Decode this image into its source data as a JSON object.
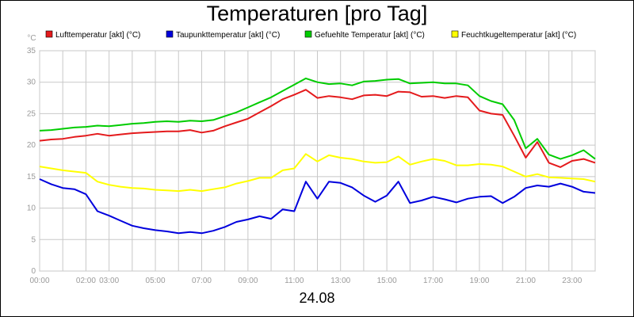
{
  "chart_data": {
    "type": "line",
    "title": "Temperaturen [pro Tag]",
    "xlabel": "24.08",
    "ylabel": "°C",
    "ylim": [
      0,
      35
    ],
    "xlim": [
      0,
      24
    ],
    "yticks": [
      "0",
      "5",
      "10",
      "15",
      "20",
      "25",
      "30",
      "35"
    ],
    "xticks": [
      {
        "h": 0,
        "label": "00:00"
      },
      {
        "h": 2,
        "label": "02:00"
      },
      {
        "h": 3,
        "label": "03:00"
      },
      {
        "h": 5,
        "label": "05:00"
      },
      {
        "h": 7,
        "label": "07:00"
      },
      {
        "h": 9,
        "label": "09:00"
      },
      {
        "h": 11,
        "label": "11:00"
      },
      {
        "h": 13,
        "label": "13:00"
      },
      {
        "h": 15,
        "label": "15:00"
      },
      {
        "h": 17,
        "label": "17:00"
      },
      {
        "h": 19,
        "label": "19:00"
      },
      {
        "h": 21,
        "label": "21:00"
      },
      {
        "h": 23,
        "label": "23:00"
      }
    ],
    "grid": true,
    "legend_position": "top",
    "x": [
      0,
      0.5,
      1,
      1.5,
      2,
      2.5,
      3,
      3.5,
      4,
      4.5,
      5,
      5.5,
      6,
      6.5,
      7,
      7.5,
      8,
      8.5,
      9,
      9.5,
      10,
      10.5,
      11,
      11.5,
      12,
      12.5,
      13,
      13.5,
      14,
      14.5,
      15,
      15.5,
      16,
      16.5,
      17,
      17.5,
      18,
      18.5,
      19,
      19.5,
      20,
      20.5,
      21,
      21.5,
      22,
      22.5,
      23,
      23.5,
      24
    ],
    "series": [
      {
        "name": "Lufttemperatur [akt] (°C)",
        "color": "#e41a1c",
        "values": [
          20.7,
          20.9,
          21.0,
          21.3,
          21.5,
          21.8,
          21.5,
          21.7,
          21.9,
          22.0,
          22.1,
          22.2,
          22.2,
          22.4,
          22.0,
          22.3,
          23.0,
          23.6,
          24.2,
          25.2,
          26.2,
          27.3,
          28.0,
          28.8,
          27.5,
          27.8,
          27.6,
          27.3,
          27.9,
          28.0,
          27.8,
          28.5,
          28.4,
          27.7,
          27.8,
          27.5,
          27.8,
          27.6,
          25.5,
          25.0,
          24.8,
          21.5,
          18.0,
          20.5,
          17.2,
          16.5,
          17.5,
          17.8,
          17.2
        ]
      },
      {
        "name": "Taupunkttemperatur [akt] (°C)",
        "color": "#0000dd",
        "values": [
          14.6,
          13.8,
          13.2,
          13.0,
          12.2,
          9.5,
          8.8,
          8.0,
          7.2,
          6.8,
          6.5,
          6.3,
          6.0,
          6.2,
          6.0,
          6.4,
          7.0,
          7.8,
          8.2,
          8.7,
          8.3,
          9.8,
          9.5,
          14.2,
          11.5,
          14.2,
          14.0,
          13.3,
          12.0,
          11.0,
          12.0,
          14.2,
          10.8,
          11.2,
          11.8,
          11.4,
          10.9,
          11.5,
          11.8,
          11.9,
          10.8,
          11.8,
          13.2,
          13.6,
          13.4,
          13.9,
          13.4,
          12.6,
          12.4
        ]
      },
      {
        "name": "Gefuehlte Temperatur [akt] (°C)",
        "color": "#00cc00",
        "values": [
          22.3,
          22.4,
          22.6,
          22.8,
          22.9,
          23.1,
          23.0,
          23.2,
          23.4,
          23.5,
          23.7,
          23.8,
          23.7,
          23.9,
          23.8,
          24.0,
          24.6,
          25.2,
          26.0,
          26.8,
          27.6,
          28.6,
          29.6,
          30.6,
          30.0,
          29.7,
          29.8,
          29.5,
          30.1,
          30.2,
          30.4,
          30.5,
          29.8,
          29.9,
          30.0,
          29.8,
          29.8,
          29.5,
          27.8,
          27.0,
          26.5,
          24.0,
          19.5,
          21.0,
          18.5,
          17.8,
          18.4,
          19.2,
          17.8
        ]
      },
      {
        "name": "Feuchtkugeltemperatur [akt] (°C)",
        "color": "#ffff00",
        "values": [
          16.6,
          16.3,
          16.0,
          15.8,
          15.6,
          14.2,
          13.7,
          13.4,
          13.2,
          13.1,
          12.9,
          12.8,
          12.7,
          12.9,
          12.7,
          13.0,
          13.3,
          13.9,
          14.3,
          14.8,
          14.8,
          16.0,
          16.3,
          18.6,
          17.4,
          18.4,
          18.0,
          17.8,
          17.4,
          17.2,
          17.3,
          18.2,
          16.9,
          17.4,
          17.8,
          17.5,
          16.8,
          16.8,
          17.0,
          16.9,
          16.6,
          15.8,
          15.0,
          15.4,
          14.9,
          14.8,
          14.7,
          14.6,
          14.2
        ]
      }
    ]
  }
}
